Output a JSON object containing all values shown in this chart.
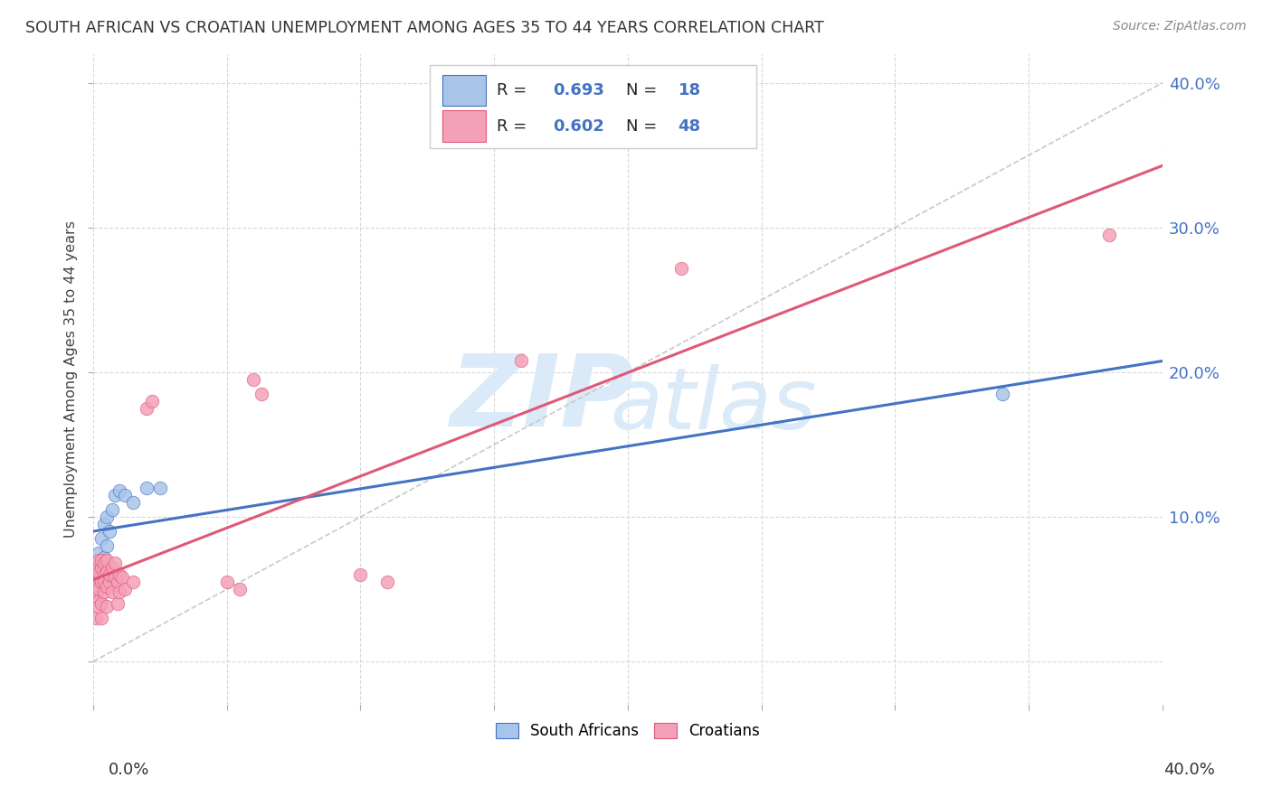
{
  "title": "SOUTH AFRICAN VS CROATIAN UNEMPLOYMENT AMONG AGES 35 TO 44 YEARS CORRELATION CHART",
  "source": "Source: ZipAtlas.com",
  "ylabel": "Unemployment Among Ages 35 to 44 years",
  "xlim": [
    0.0,
    0.4
  ],
  "ylim": [
    -0.03,
    0.42
  ],
  "south_african_R": 0.693,
  "south_african_N": 18,
  "croatian_R": 0.602,
  "croatian_N": 48,
  "south_african_color": "#a8c4e8",
  "south_african_line_color": "#4472c4",
  "croatian_color": "#f4a0b8",
  "croatian_line_color": "#e05878",
  "diagonal_color": "#c8c8c8",
  "background_color": "#ffffff",
  "grid_color": "#d8d8d8",
  "title_color": "#333333",
  "watermark_color": "#daeaf8",
  "south_african_x": [
    0.001,
    0.002,
    0.002,
    0.003,
    0.003,
    0.004,
    0.004,
    0.005,
    0.005,
    0.006,
    0.007,
    0.008,
    0.01,
    0.012,
    0.015,
    0.02,
    0.025,
    0.34
  ],
  "south_african_y": [
    0.05,
    0.06,
    0.075,
    0.065,
    0.085,
    0.072,
    0.095,
    0.08,
    0.1,
    0.09,
    0.105,
    0.115,
    0.118,
    0.115,
    0.11,
    0.12,
    0.12,
    0.185
  ],
  "croatian_x": [
    0.001,
    0.001,
    0.001,
    0.001,
    0.001,
    0.002,
    0.002,
    0.002,
    0.002,
    0.002,
    0.002,
    0.003,
    0.003,
    0.003,
    0.003,
    0.003,
    0.004,
    0.004,
    0.004,
    0.004,
    0.005,
    0.005,
    0.005,
    0.005,
    0.006,
    0.006,
    0.007,
    0.007,
    0.008,
    0.008,
    0.009,
    0.009,
    0.01,
    0.01,
    0.011,
    0.012,
    0.015,
    0.02,
    0.022,
    0.05,
    0.055,
    0.06,
    0.063,
    0.1,
    0.11,
    0.16,
    0.22,
    0.38
  ],
  "croatian_y": [
    0.048,
    0.052,
    0.06,
    0.065,
    0.03,
    0.042,
    0.058,
    0.062,
    0.07,
    0.05,
    0.038,
    0.04,
    0.055,
    0.065,
    0.07,
    0.03,
    0.048,
    0.06,
    0.068,
    0.055,
    0.052,
    0.062,
    0.07,
    0.038,
    0.055,
    0.06,
    0.065,
    0.048,
    0.068,
    0.058,
    0.055,
    0.04,
    0.06,
    0.048,
    0.058,
    0.05,
    0.055,
    0.175,
    0.18,
    0.055,
    0.05,
    0.195,
    0.185,
    0.06,
    0.055,
    0.208,
    0.272,
    0.295
  ],
  "legend_sa_color": "#a8c4e8",
  "legend_cr_color": "#f4a0b8",
  "legend_text_color": "#4472c4"
}
